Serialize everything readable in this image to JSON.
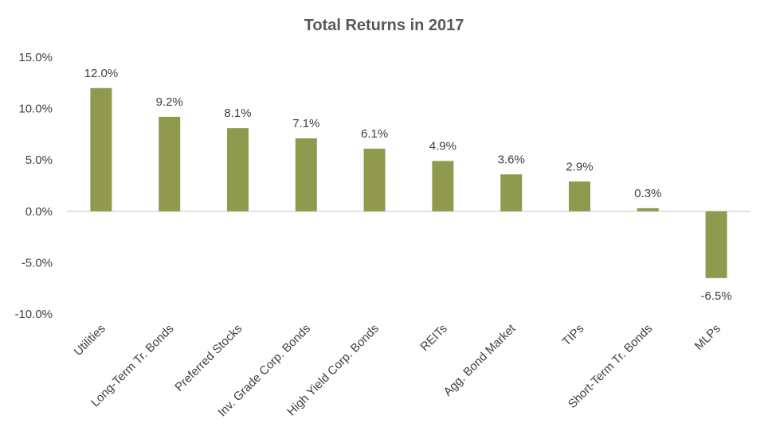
{
  "chart_data": {
    "type": "bar",
    "title": "Total Returns in 2017",
    "categories": [
      "Utilities",
      "Long-Term Tr. Bonds",
      "Preferred Stocks",
      "Inv. Grade Corp. Bonds",
      "High Yield Corp. Bonds",
      "REITs",
      "Agg. Bond Market",
      "TIPs",
      "Short-Term Tr. Bonds",
      "MLPs"
    ],
    "values": [
      12.0,
      9.2,
      8.1,
      7.1,
      6.1,
      4.9,
      3.6,
      2.9,
      0.3,
      -6.5
    ],
    "data_labels": [
      "12.0%",
      "9.2%",
      "8.1%",
      "7.1%",
      "6.1%",
      "4.9%",
      "3.6%",
      "2.9%",
      "0.3%",
      "-6.5%"
    ],
    "y_ticks": [
      15,
      10,
      5,
      0,
      -5,
      -10
    ],
    "y_tick_labels": [
      "15.0%",
      "10.0%",
      "5.0%",
      "0.0%",
      "-5.0%",
      "-10.0%"
    ],
    "ylim": [
      -10,
      15
    ],
    "xlabel": "",
    "ylabel": "",
    "grid": false,
    "legend": "none",
    "bar_color": "#8F9A4E",
    "axis_color": "#d9d9d9"
  }
}
